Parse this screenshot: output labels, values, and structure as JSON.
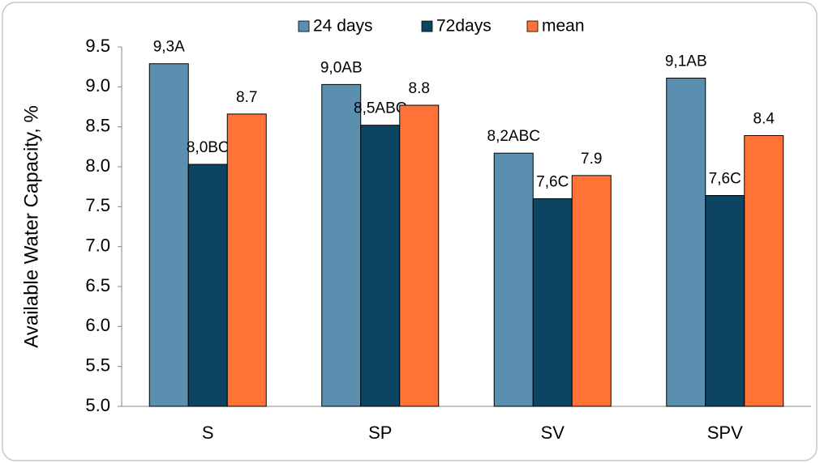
{
  "chart_data": {
    "type": "bar",
    "y_label": "Available Water Capacity, %",
    "categories": [
      "S",
      "SP",
      "SV",
      "SPV"
    ],
    "series": [
      {
        "name": "24 days",
        "color": "#5b8fb0",
        "values": [
          9.29,
          9.03,
          8.17,
          9.11
        ],
        "value_labels": [
          "9,3A",
          "9,0AB",
          "8,2ABC",
          "9,1AB"
        ]
      },
      {
        "name": "72days",
        "color": "#0c4562",
        "values": [
          8.03,
          8.52,
          7.6,
          7.64
        ],
        "value_labels": [
          "8,0BC",
          "8,5ABC",
          "7,6C",
          "7,6C"
        ]
      },
      {
        "name": "mean",
        "color": "#ff7336",
        "values": [
          8.66,
          8.77,
          7.89,
          8.39
        ],
        "value_labels": [
          "8.7",
          "8.8",
          "7.9",
          "8.4"
        ]
      }
    ],
    "ylim": [
      5,
      9.5
    ],
    "yticks": [
      {
        "value": 5,
        "label": "5.0"
      },
      5.5,
      {
        "value": 6,
        "label": "6.0"
      },
      6.5,
      {
        "value": 7,
        "label": "7.0"
      },
      7.5,
      {
        "value": 8,
        "label": "8.0"
      },
      8.5,
      {
        "value": 9,
        "label": "9.0"
      },
      9.5
    ],
    "grid": false,
    "legend": "top"
  }
}
